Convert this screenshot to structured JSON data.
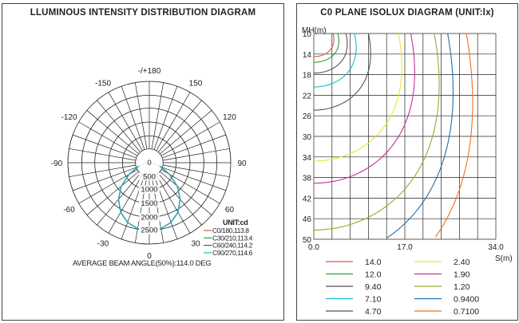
{
  "left": {
    "title": "LLUMINOUS INTENSITY DISTRIBUTION DIAGRAM",
    "angle_labels": [
      "-/+180",
      "150",
      "120",
      "90",
      "60",
      "30",
      "0",
      "-30",
      "-60",
      "-90",
      "-120",
      "-150"
    ],
    "radial_labels": [
      "0",
      "500",
      "1000",
      "1500",
      "2000",
      "2500"
    ],
    "unit_label": "UNIT:cd",
    "legend": [
      {
        "label": "C0/180,113.8",
        "color": "#e05050"
      },
      {
        "label": "C30/210,113.4",
        "color": "#2ca02c"
      },
      {
        "label": "C60/240,114.2",
        "color": "#555555"
      },
      {
        "label": "C90/270,114.6",
        "color": "#17bcd0"
      }
    ],
    "beam_angle_text": "AVERAGE BEAM ANGLE(50%):114.0 DEG"
  },
  "right": {
    "title": "C0 PLANE ISOLUX DIAGRAM (UNIT:lx)",
    "y_axis_label": "MH(m)",
    "x_axis_label": "S(m)",
    "y_ticks": [
      "10",
      "14",
      "18",
      "22",
      "26",
      "30",
      "34",
      "38",
      "42",
      "46",
      "50"
    ],
    "x_ticks": [
      "0.0",
      "17.0",
      "34.0"
    ],
    "legend": [
      {
        "label": "14.0",
        "color": "#e05050"
      },
      {
        "label": "12.0",
        "color": "#2ca02c"
      },
      {
        "label": "9.40",
        "color": "#555555"
      },
      {
        "label": "7.10",
        "color": "#17bcd0"
      },
      {
        "label": "4.70",
        "color": "#555555"
      },
      {
        "label": "2.40",
        "color": "#e8e830"
      },
      {
        "label": "1.90",
        "color": "#c0309a"
      },
      {
        "label": "1.20",
        "color": "#9aaa30"
      },
      {
        "label": "0.9400",
        "color": "#1f6fb0"
      },
      {
        "label": "0.7100",
        "color": "#f07020"
      }
    ]
  },
  "chart_data": [
    {
      "type": "polar",
      "title": "LLUMINOUS INTENSITY DISTRIBUTION DIAGRAM",
      "unit": "cd",
      "radial_range": [
        0,
        2500
      ],
      "beam_angle_deg": 114.0,
      "series": [
        {
          "name": "C0/180",
          "beam_angle": 113.8,
          "angles": [
            0,
            10,
            20,
            30,
            40,
            50,
            60,
            70,
            80,
            90
          ],
          "values": [
            2100,
            2060,
            1950,
            1760,
            1470,
            1120,
            720,
            380,
            150,
            0
          ]
        },
        {
          "name": "C30/210",
          "beam_angle": 113.4,
          "angles": [
            0,
            10,
            20,
            30,
            40,
            50,
            60,
            70,
            80,
            90
          ],
          "values": [
            2100,
            2060,
            1950,
            1760,
            1470,
            1120,
            720,
            380,
            150,
            0
          ]
        },
        {
          "name": "C60/240",
          "beam_angle": 114.2,
          "angles": [
            0,
            10,
            20,
            30,
            40,
            50,
            60,
            70,
            80,
            90
          ],
          "values": [
            2100,
            2060,
            1950,
            1760,
            1470,
            1120,
            720,
            380,
            150,
            0
          ]
        },
        {
          "name": "C90/270",
          "beam_angle": 114.6,
          "angles": [
            0,
            10,
            20,
            30,
            40,
            50,
            60,
            70,
            80,
            90
          ],
          "values": [
            2100,
            2060,
            1950,
            1760,
            1470,
            1120,
            720,
            380,
            150,
            0
          ]
        }
      ]
    },
    {
      "type": "line",
      "title": "C0 PLANE ISOLUX DIAGRAM (UNIT:lx)",
      "xlabel": "S(m)",
      "ylabel": "MH(m)",
      "xlim": [
        0,
        34
      ],
      "ylim": [
        10,
        50
      ],
      "grid": true,
      "series": [
        {
          "name": "14.0",
          "x_at_mh10": 3.6,
          "max_mh": 14.5
        },
        {
          "name": "12.0",
          "x_at_mh10": 4.5,
          "max_mh": 15.6
        },
        {
          "name": "9.40",
          "x_at_mh10": 6.0,
          "max_mh": 17.7
        },
        {
          "name": "7.10",
          "x_at_mh10": 7.6,
          "max_mh": 20.4
        },
        {
          "name": "4.70",
          "x_at_mh10": 10.2,
          "max_mh": 24.9
        },
        {
          "name": "2.40",
          "x_at_mh10": 15.8,
          "max_mh": 34.8
        },
        {
          "name": "1.90",
          "x_at_mh10": 18.1,
          "max_mh": 39.1
        },
        {
          "name": "1.20",
          "x_at_mh10": 22.5,
          "max_mh": 48.2
        },
        {
          "name": "0.9400",
          "x_at_mh10": 25.0,
          "max_mh": 54.0
        },
        {
          "name": "0.7100",
          "x_at_mh10": 28.5,
          "max_mh": 62.0
        }
      ]
    }
  ]
}
